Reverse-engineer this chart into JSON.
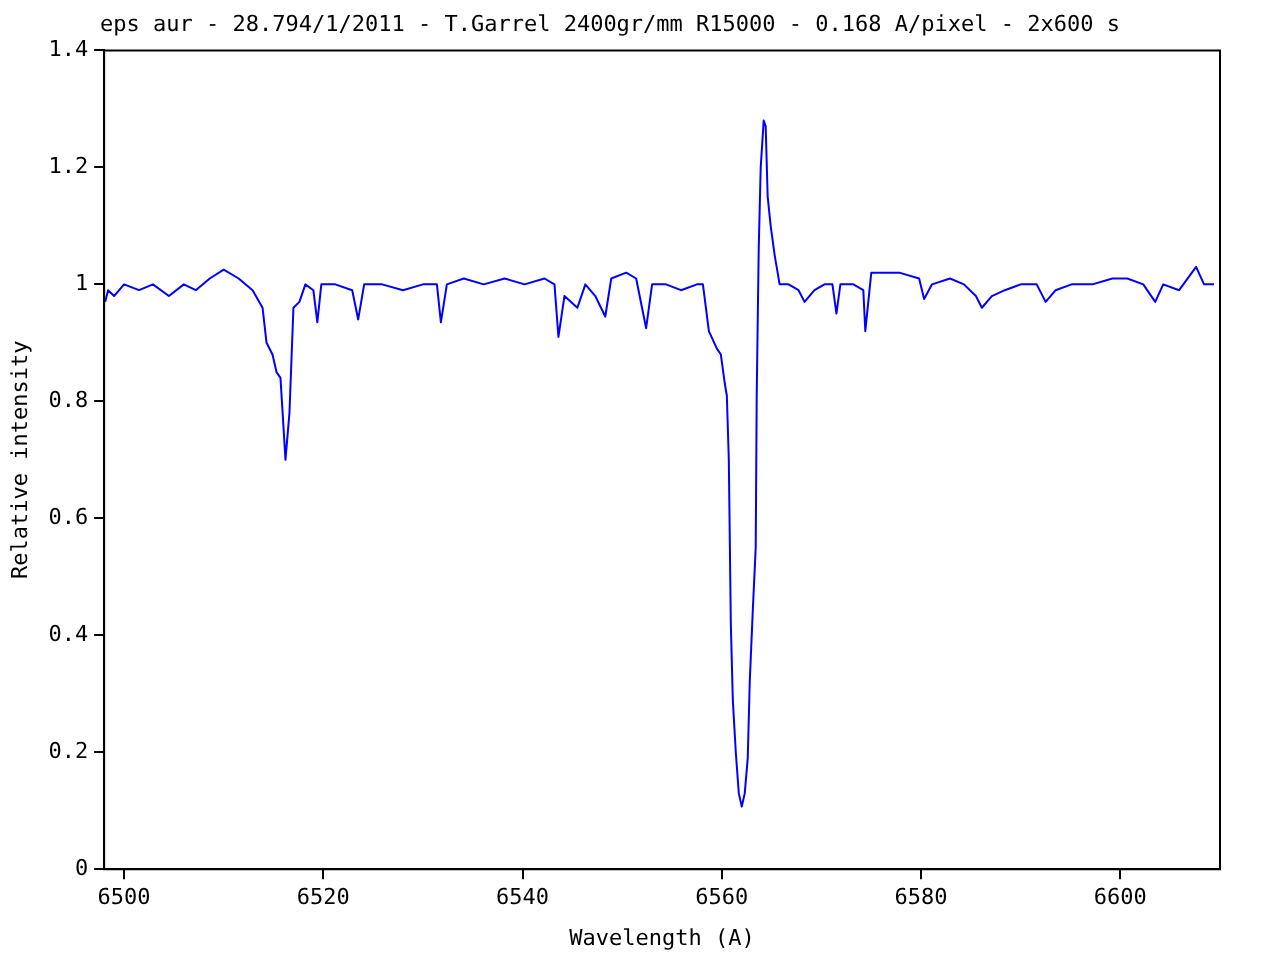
{
  "chart_data": {
    "type": "line",
    "title": "eps aur - 28.794/1/2011 - T.Garrel 2400gr/mm R15000 - 0.168 A/pixel - 2x600 s",
    "xlabel": "Wavelength (A)",
    "ylabel": "Relative intensity",
    "xlim": [
      6498,
      6610
    ],
    "xticks": [
      6500,
      6520,
      6540,
      6560,
      6580,
      6600
    ],
    "ylim": [
      0,
      1.4
    ],
    "yticks": [
      0,
      0.2,
      0.4,
      0.6,
      0.8,
      1,
      1.2,
      1.4
    ],
    "grid": false,
    "legend": false,
    "marker": "none",
    "line_style": "solid",
    "series": [
      {
        "color": "#0000ff",
        "x": [
          6498.1,
          6498.4,
          6499.0,
          6500.0,
          6501.5,
          6502.9,
          6504.5,
          6506.0,
          6507.2,
          6508.6,
          6510.0,
          6511.5,
          6512.9,
          6513.9,
          6514.3,
          6514.9,
          6515.3,
          6515.7,
          6516.2,
          6516.6,
          6517.0,
          6517.6,
          6518.2,
          6519.0,
          6519.4,
          6519.8,
          6521.2,
          6522.9,
          6523.5,
          6524.1,
          6525.9,
          6528.0,
          6530.0,
          6531.4,
          6531.8,
          6532.4,
          6534.1,
          6536.1,
          6538.2,
          6540.2,
          6542.2,
          6543.2,
          6543.6,
          6544.2,
          6545.5,
          6546.3,
          6547.3,
          6548.3,
          6548.9,
          6550.4,
          6551.4,
          6552.4,
          6553.0,
          6554.4,
          6555.9,
          6557.5,
          6558.1,
          6558.7,
          6559.5,
          6559.9,
          6560.3,
          6560.5,
          6560.7,
          6560.9,
          6561.1,
          6561.4,
          6561.7,
          6562.0,
          6562.3,
          6562.6,
          6562.8,
          6563.1,
          6563.4,
          6563.5,
          6563.7,
          6563.9,
          6564.2,
          6564.4,
          6564.6,
          6564.9,
          6565.3,
          6565.8,
          6566.7,
          6567.7,
          6568.3,
          6569.3,
          6570.3,
          6571.1,
          6571.5,
          6571.9,
          6573.2,
          6574.2,
          6574.4,
          6575.0,
          6576.2,
          6577.8,
          6579.8,
          6580.3,
          6581.1,
          6582.9,
          6584.3,
          6585.5,
          6586.1,
          6587.1,
          6588.4,
          6590.0,
          6591.6,
          6592.5,
          6593.5,
          6595.1,
          6597.2,
          6599.2,
          6600.7,
          6602.3,
          6603.5,
          6604.3,
          6605.9,
          6607.6,
          6608.4,
          6609.4
        ],
        "values": [
          0.97,
          0.99,
          0.98,
          1.0,
          0.99,
          1.0,
          0.98,
          1.0,
          0.99,
          1.01,
          1.025,
          1.01,
          0.99,
          0.96,
          0.9,
          0.88,
          0.85,
          0.84,
          0.7,
          0.78,
          0.96,
          0.97,
          1.0,
          0.99,
          0.935,
          1.0,
          1.0,
          0.99,
          0.94,
          1.0,
          1.0,
          0.99,
          1.0,
          1.0,
          0.935,
          1.0,
          1.01,
          1.0,
          1.01,
          1.0,
          1.01,
          1.0,
          0.91,
          0.98,
          0.96,
          1.0,
          0.98,
          0.945,
          1.01,
          1.02,
          1.01,
          0.925,
          1.0,
          1.0,
          0.99,
          1.0,
          1.0,
          0.92,
          0.89,
          0.88,
          0.83,
          0.81,
          0.7,
          0.42,
          0.29,
          0.2,
          0.13,
          0.107,
          0.13,
          0.19,
          0.32,
          0.44,
          0.55,
          0.81,
          1.06,
          1.2,
          1.28,
          1.27,
          1.15,
          1.1,
          1.05,
          1.0,
          1.0,
          0.99,
          0.97,
          0.99,
          1.0,
          1.0,
          0.95,
          1.0,
          1.0,
          0.99,
          0.92,
          1.02,
          1.02,
          1.02,
          1.01,
          0.975,
          1.0,
          1.01,
          1.0,
          0.98,
          0.96,
          0.98,
          0.99,
          1.0,
          1.0,
          0.97,
          0.99,
          1.0,
          1.0,
          1.01,
          1.01,
          1.0,
          0.97,
          1.0,
          0.99,
          1.03,
          1.0,
          1.0
        ]
      }
    ]
  }
}
